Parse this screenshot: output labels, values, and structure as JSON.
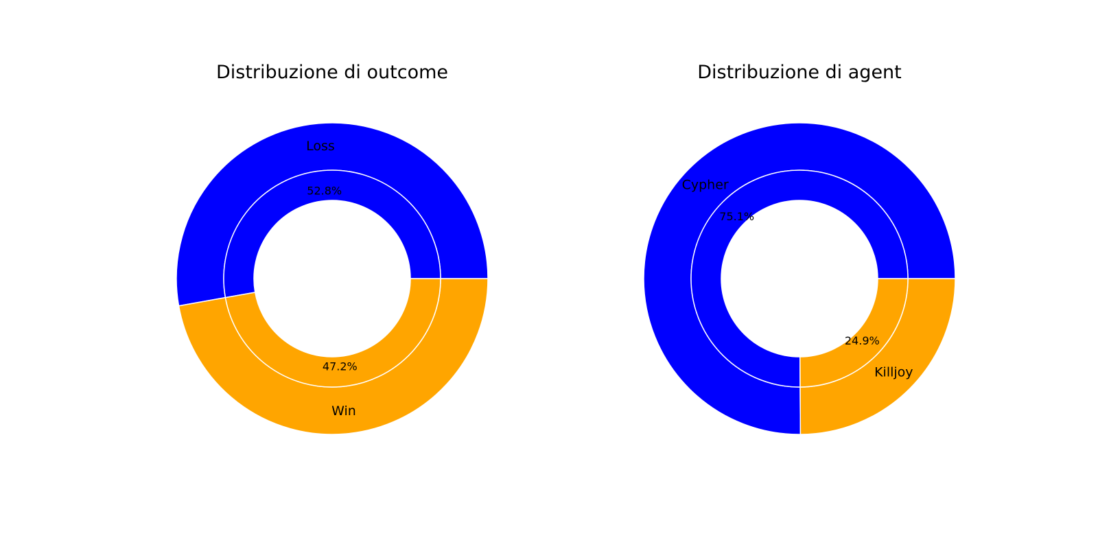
{
  "chart_data": [
    {
      "type": "pie",
      "variant": "nested-donut",
      "title": "Distribuzione di outcome",
      "categories": [
        "Loss",
        "Win"
      ],
      "values": [
        52.8,
        47.2
      ],
      "percent_labels": [
        "52.8%",
        "47.2%"
      ],
      "colors": [
        "#0000ff",
        "#ffa500"
      ],
      "start_angle_deg": 0,
      "direction": "counterclockwise"
    },
    {
      "type": "pie",
      "variant": "nested-donut",
      "title": "Distribuzione di agent",
      "categories": [
        "Cypher",
        "Killjoy"
      ],
      "values": [
        75.1,
        24.9
      ],
      "percent_labels": [
        "75.1%",
        "24.9%"
      ],
      "colors": [
        "#0000ff",
        "#ffa500"
      ],
      "start_angle_deg": 0,
      "direction": "counterclockwise"
    }
  ]
}
